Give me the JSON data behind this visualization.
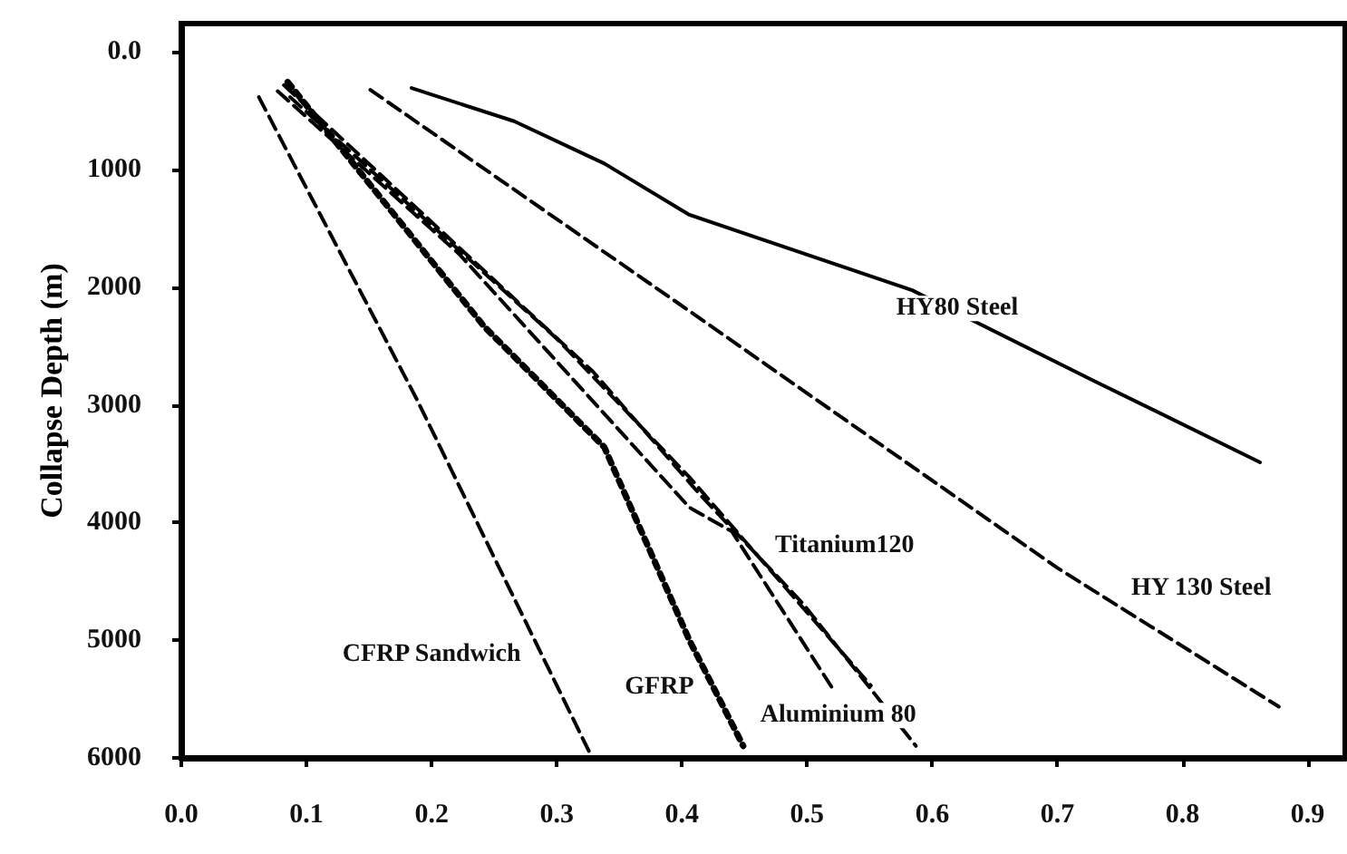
{
  "chart_data": {
    "type": "line",
    "xlabel": null,
    "ylabel": "Collapse Depth (m)",
    "xlim": [
      0,
      0.93
    ],
    "ylim": [
      6000,
      -240
    ],
    "xticks": [
      {
        "value": 0,
        "label": "0.0"
      },
      0.1,
      0.2,
      0.3,
      0.4,
      0.5,
      0.6,
      0.7,
      0.8,
      0.9
    ],
    "yticks": [
      {
        "value": 0,
        "label": "0.0"
      },
      1000,
      2000,
      3000,
      4000,
      5000,
      6000
    ],
    "grid": false,
    "legend": false,
    "marker": "none",
    "series": [
      {
        "name": "HY80 Steel",
        "color": "#000000",
        "line_style": "solid",
        "x": [
          0.184,
          0.266,
          0.338,
          0.406,
          0.584,
          0.729,
          0.862
        ],
        "values": [
          308,
          590,
          949,
          1385,
          2026,
          2795,
          3488
        ]
      },
      {
        "name": "HY 130 Steel",
        "color": "#000000",
        "line_style": "dashed",
        "x": [
          0.151,
          0.396,
          0.7,
          0.877
        ],
        "values": [
          323,
          2129,
          4385,
          5565
        ]
      },
      {
        "name": "Titanium120",
        "color": "#000000",
        "line_style": "dashed",
        "x": [
          0.087,
          0.3,
          0.406,
          0.469,
          0.551
        ],
        "values": [
          385,
          2437,
          3615,
          4385,
          5385
        ]
      },
      {
        "name": null,
        "color": "#000000",
        "line_style": "dashed",
        "x": [
          0.077,
          0.222,
          0.406,
          0.44,
          0.522
        ],
        "values": [
          334,
          1718,
          3872,
          4077,
          5437
        ]
      },
      {
        "name": "Aluminium 80",
        "color": "#000000",
        "line_style": "dashed",
        "x": [
          0.082,
          0.329,
          0.415,
          0.497,
          0.587
        ],
        "values": [
          283,
          2718,
          3769,
          4692,
          5898
        ]
      },
      {
        "name": "GFRP",
        "color": "#000000",
        "line_style": "dotted",
        "x": [
          0.085,
          0.242,
          0.338,
          0.406,
          0.449
        ],
        "values": [
          257,
          2334,
          3360,
          5000,
          5898
        ]
      },
      {
        "name": "CFRP Sandwich",
        "color": "#000000",
        "line_style": "dashed",
        "x": [
          0.062,
          0.188,
          0.326
        ],
        "values": [
          385,
          2949,
          5949
        ]
      }
    ]
  }
}
